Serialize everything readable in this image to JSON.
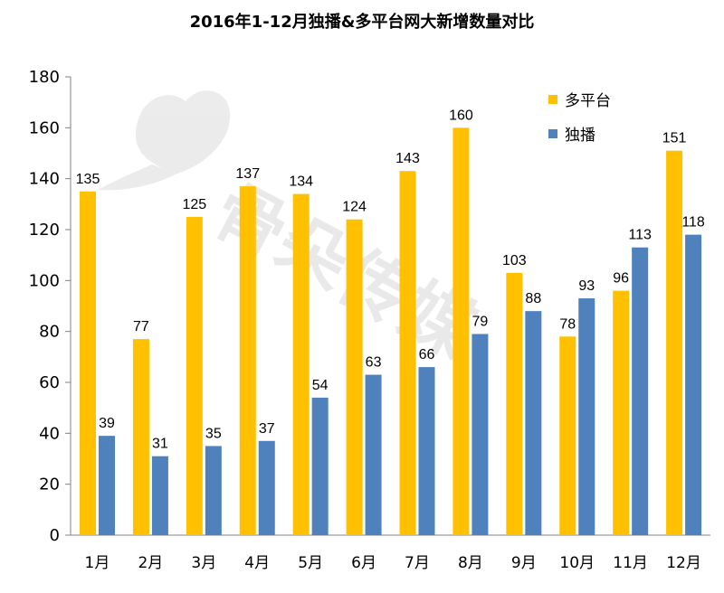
{
  "colors": {
    "multi": "#FFC000",
    "exclusive": "#4F81BD",
    "axis": "#808080",
    "watermark": "#c8c8c8"
  },
  "watermark": {
    "text": "骨朵传媒",
    "icon": "flower-logo-icon"
  },
  "chart_data": {
    "type": "bar",
    "title": "2016年1-12月独播&多平台网大新增数量对比",
    "categories": [
      "1月",
      "2月",
      "3月",
      "4月",
      "5月",
      "6月",
      "7月",
      "8月",
      "9月",
      "10月",
      "11月",
      "12月"
    ],
    "series": [
      {
        "name": "多平台",
        "color": "#FFC000",
        "values": [
          135,
          77,
          125,
          137,
          134,
          124,
          143,
          160,
          103,
          78,
          96,
          151
        ]
      },
      {
        "name": "独播",
        "color": "#4F81BD",
        "values": [
          39,
          31,
          35,
          37,
          54,
          63,
          66,
          79,
          88,
          93,
          113,
          118
        ]
      }
    ],
    "ylim": [
      0,
      180
    ],
    "yticks": [
      0,
      20,
      40,
      60,
      80,
      100,
      120,
      140,
      160,
      180
    ],
    "xlabel": "",
    "ylabel": "",
    "grid": false,
    "legend": "top-right"
  }
}
